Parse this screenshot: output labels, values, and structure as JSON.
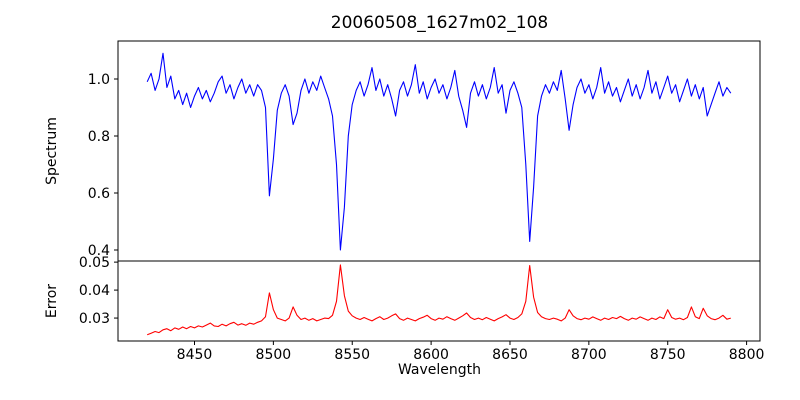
{
  "title": "20060508_1627m02_108",
  "chart_data": {
    "type": "line",
    "title": "20060508_1627m02_108",
    "xlabel": "Wavelength",
    "x_start": 8420,
    "x_step": 2.5,
    "xlim": [
      8401.5,
      8808.5
    ],
    "xticks": [
      8450,
      8500,
      8550,
      8600,
      8650,
      8700,
      8750,
      8800
    ],
    "xtick_labels": [
      "8450",
      "8500",
      "8550",
      "8600",
      "8650",
      "8700",
      "8750",
      "8800"
    ],
    "grid": false,
    "legend": "none",
    "panels": [
      {
        "ylabel": "Spectrum",
        "ylim": [
          0.3614,
          1.1333
        ],
        "yticks": [
          0.4,
          0.6,
          0.8,
          1.0
        ],
        "ytick_labels": [
          "0.4",
          "0.6",
          "0.8",
          "1.0"
        ],
        "line_color": "#0000ff"
      },
      {
        "ylabel": "Error",
        "ylim": [
          0.0218,
          0.0504
        ],
        "yticks": [
          0.03,
          0.04,
          0.05
        ],
        "ytick_labels": [
          "0.03",
          "0.04",
          "0.05"
        ],
        "line_color": "#ff0000"
      }
    ],
    "absorption_features": [
      {
        "wavelength": 8498,
        "depth": 0.59
      },
      {
        "wavelength": 8514,
        "depth": 0.84
      },
      {
        "wavelength": 8542,
        "depth": 0.4
      },
      {
        "wavelength": 8621,
        "depth": 0.83
      },
      {
        "wavelength": 8662,
        "depth": 0.43
      },
      {
        "wavelength": 8688,
        "depth": 0.82
      },
      {
        "wavelength": 8775,
        "depth": 0.87
      }
    ],
    "series": [
      {
        "name": "spectrum",
        "panel": 0,
        "color": "#0000ff",
        "y": [
          0.99,
          1.02,
          0.96,
          1.0,
          1.09,
          0.97,
          1.01,
          0.93,
          0.96,
          0.91,
          0.95,
          0.9,
          0.94,
          0.97,
          0.93,
          0.96,
          0.92,
          0.95,
          0.99,
          1.01,
          0.95,
          0.98,
          0.93,
          0.97,
          1.0,
          0.95,
          0.98,
          0.94,
          0.98,
          0.96,
          0.9,
          0.59,
          0.72,
          0.89,
          0.95,
          0.98,
          0.94,
          0.84,
          0.88,
          0.96,
          1.0,
          0.95,
          0.99,
          0.96,
          1.01,
          0.97,
          0.93,
          0.87,
          0.7,
          0.4,
          0.55,
          0.8,
          0.91,
          0.96,
          0.99,
          0.94,
          0.98,
          1.04,
          0.96,
          1.0,
          0.94,
          0.98,
          0.93,
          0.87,
          0.96,
          0.99,
          0.94,
          0.98,
          1.05,
          0.95,
          0.99,
          0.93,
          0.97,
          1.0,
          0.95,
          0.98,
          0.93,
          0.97,
          1.03,
          0.94,
          0.89,
          0.83,
          0.95,
          0.99,
          0.94,
          0.98,
          0.93,
          0.97,
          1.04,
          0.95,
          0.98,
          0.88,
          0.96,
          0.99,
          0.95,
          0.9,
          0.7,
          0.43,
          0.62,
          0.87,
          0.94,
          0.98,
          0.95,
          0.99,
          0.96,
          1.03,
          0.93,
          0.82,
          0.91,
          0.97,
          1.0,
          0.95,
          0.98,
          0.93,
          0.97,
          1.04,
          0.95,
          0.99,
          0.94,
          0.97,
          0.92,
          0.96,
          1.0,
          0.94,
          0.98,
          0.93,
          0.97,
          1.03,
          0.95,
          0.99,
          0.93,
          0.97,
          1.01,
          0.95,
          0.98,
          0.92,
          0.96,
          1.0,
          0.94,
          0.98,
          0.93,
          0.97,
          0.87,
          0.91,
          0.95,
          0.99,
          0.94,
          0.97,
          0.95
        ]
      },
      {
        "name": "error",
        "panel": 1,
        "color": "#ff0000",
        "y": [
          0.024,
          0.0246,
          0.0252,
          0.0248,
          0.0258,
          0.0262,
          0.0255,
          0.0265,
          0.026,
          0.0268,
          0.0262,
          0.027,
          0.0265,
          0.0272,
          0.0268,
          0.0275,
          0.0282,
          0.0272,
          0.027,
          0.0278,
          0.0272,
          0.028,
          0.0285,
          0.0275,
          0.028,
          0.0274,
          0.0282,
          0.0278,
          0.0285,
          0.029,
          0.0305,
          0.039,
          0.033,
          0.03,
          0.0295,
          0.029,
          0.03,
          0.034,
          0.031,
          0.0295,
          0.03,
          0.0292,
          0.0298,
          0.029,
          0.0295,
          0.03,
          0.0298,
          0.031,
          0.036,
          0.049,
          0.038,
          0.0325,
          0.0308,
          0.03,
          0.0295,
          0.0302,
          0.0296,
          0.029,
          0.0298,
          0.0305,
          0.0295,
          0.03,
          0.0308,
          0.0315,
          0.0298,
          0.0292,
          0.03,
          0.0295,
          0.029,
          0.0298,
          0.0303,
          0.031,
          0.0298,
          0.0292,
          0.03,
          0.0296,
          0.0305,
          0.0298,
          0.0292,
          0.03,
          0.0308,
          0.0318,
          0.0302,
          0.0295,
          0.03,
          0.0294,
          0.0302,
          0.0296,
          0.029,
          0.0298,
          0.0304,
          0.0312,
          0.03,
          0.0295,
          0.0302,
          0.0315,
          0.036,
          0.0488,
          0.0375,
          0.032,
          0.0305,
          0.0298,
          0.0295,
          0.03,
          0.0296,
          0.029,
          0.03,
          0.033,
          0.0308,
          0.0298,
          0.0294,
          0.03,
          0.0296,
          0.0304,
          0.0298,
          0.0292,
          0.03,
          0.0295,
          0.0302,
          0.0298,
          0.0306,
          0.0298,
          0.0292,
          0.03,
          0.0296,
          0.0304,
          0.0298,
          0.0292,
          0.03,
          0.0295,
          0.0304,
          0.0298,
          0.033,
          0.0302,
          0.0296,
          0.03,
          0.0294,
          0.0302,
          0.034,
          0.0305,
          0.0298,
          0.0335,
          0.0308,
          0.0298,
          0.0294,
          0.03,
          0.031,
          0.0296,
          0.03
        ]
      }
    ]
  }
}
